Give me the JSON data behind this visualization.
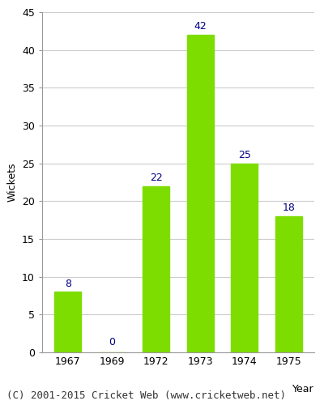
{
  "years": [
    "1967",
    "1969",
    "1972",
    "1973",
    "1974",
    "1975"
  ],
  "values": [
    8,
    0,
    22,
    42,
    25,
    18
  ],
  "bar_color": "#7ddd00",
  "label_color": "#000080",
  "xlabel": "Year",
  "ylabel": "Wickets",
  "ylim": [
    0,
    45
  ],
  "yticks": [
    0,
    5,
    10,
    15,
    20,
    25,
    30,
    35,
    40,
    45
  ],
  "background_color": "#ffffff",
  "plot_bg_color": "#ffffff",
  "footer": "(C) 2001-2015 Cricket Web (www.cricketweb.net)",
  "label_fontsize": 9,
  "axis_fontsize": 9,
  "footer_fontsize": 9,
  "grid_color": "#cccccc"
}
